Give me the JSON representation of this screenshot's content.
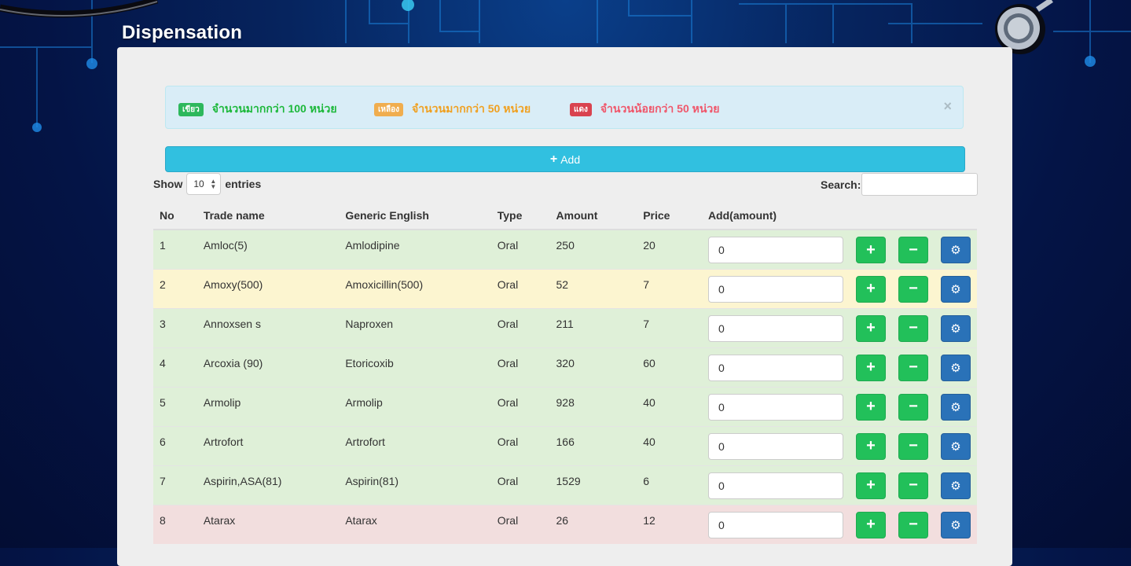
{
  "page_title": "Dispensation",
  "legend": [
    {
      "badge": "เขียว",
      "text": "จำนวนมากกว่า 100 หน่วย",
      "badge_color": "#2db85c",
      "text_color": "#1cb83a"
    },
    {
      "badge": "เหลือง",
      "text": "จำนวนมากกว่า 50 หน่วย",
      "badge_color": "#f0ad4e",
      "text_color": "#f0a020"
    },
    {
      "badge": "แดง",
      "text": "จำนวนน้อยกว่า 50 หน่วย",
      "badge_color": "#d9434f",
      "text_color": "#f0566a"
    }
  ],
  "alert_close": "×",
  "add_button": {
    "icon": "plus-icon",
    "label": "Add"
  },
  "length_control": {
    "show_label": "Show",
    "selected": "10",
    "entries_label": "entries"
  },
  "search": {
    "label": "Search:",
    "value": ""
  },
  "table": {
    "columns": [
      "No",
      "Trade name",
      "Generic English",
      "Type",
      "Amount",
      "Price",
      "Add(amount)"
    ],
    "rows": [
      {
        "no": "1",
        "trade": "Amloc(5)",
        "generic": "Amlodipine",
        "type": "Oral",
        "amount": "250",
        "price": "20",
        "add": "0",
        "status": "green"
      },
      {
        "no": "2",
        "trade": "Amoxy(500)",
        "generic": "Amoxicillin(500)",
        "type": "Oral",
        "amount": "52",
        "price": "7",
        "add": "0",
        "status": "yellow"
      },
      {
        "no": "3",
        "trade": "Annoxsen s",
        "generic": "Naproxen",
        "type": "Oral",
        "amount": "211",
        "price": "7",
        "add": "0",
        "status": "green"
      },
      {
        "no": "4",
        "trade": "Arcoxia (90)",
        "generic": "Etoricoxib",
        "type": "Oral",
        "amount": "320",
        "price": "60",
        "add": "0",
        "status": "green"
      },
      {
        "no": "5",
        "trade": "Armolip",
        "generic": "Armolip",
        "type": "Oral",
        "amount": "928",
        "price": "40",
        "add": "0",
        "status": "green"
      },
      {
        "no": "6",
        "trade": "Artrofort",
        "generic": "Artrofort",
        "type": "Oral",
        "amount": "166",
        "price": "40",
        "add": "0",
        "status": "green"
      },
      {
        "no": "7",
        "trade": "Aspirin,ASA(81)",
        "generic": "Aspirin(81)",
        "type": "Oral",
        "amount": "1529",
        "price": "6",
        "add": "0",
        "status": "green"
      },
      {
        "no": "8",
        "trade": "Atarax",
        "generic": "Atarax",
        "type": "Oral",
        "amount": "26",
        "price": "12",
        "add": "0",
        "status": "red"
      }
    ]
  },
  "row_actions": {
    "increase": "plus-icon",
    "decrease": "minus-icon",
    "settings": "gear-icon"
  },
  "colors": {
    "row_green": "#dff0d8",
    "row_yellow": "#fcf5d0",
    "row_red": "#f2dede",
    "add_button": "#31c0e0",
    "action_green": "#22c05a",
    "action_blue": "#2a72b8"
  }
}
